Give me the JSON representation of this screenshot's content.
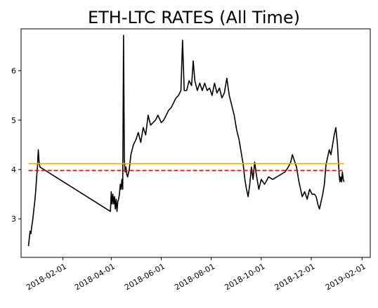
{
  "chart_data": {
    "type": "line",
    "title": "ETH-LTC RATES (All Time)",
    "xlabel": "",
    "ylabel": "",
    "x_range": [
      "2017-12-12",
      "2019-02-11"
    ],
    "ylim": [
      2.22,
      6.85
    ],
    "x_ticks": [
      "2018-02-01",
      "2018-04-01",
      "2018-06-01",
      "2018-08-01",
      "2018-10-01",
      "2018-12-01",
      "2019-02-01"
    ],
    "y_ticks": [
      3,
      4,
      5,
      6
    ],
    "grid": false,
    "legend": "none",
    "series": [
      {
        "color": "#000000",
        "style": "solid",
        "points": [
          [
            "2017-12-21",
            2.45
          ],
          [
            "2017-12-22",
            2.6
          ],
          [
            "2017-12-23",
            2.75
          ],
          [
            "2017-12-24",
            2.7
          ],
          [
            "2017-12-25",
            2.85
          ],
          [
            "2017-12-26",
            2.95
          ],
          [
            "2017-12-27",
            3.1
          ],
          [
            "2017-12-28",
            3.25
          ],
          [
            "2017-12-29",
            3.4
          ],
          [
            "2017-12-30",
            3.6
          ],
          [
            "2017-12-31",
            3.85
          ],
          [
            "2018-01-01",
            4.05
          ],
          [
            "2018-01-02",
            4.4
          ],
          [
            "2018-01-03",
            4.15
          ],
          [
            "2018-01-04",
            4.05
          ],
          [
            "2018-03-31",
            3.15
          ],
          [
            "2018-04-01",
            3.55
          ],
          [
            "2018-04-02",
            3.3
          ],
          [
            "2018-04-03",
            3.5
          ],
          [
            "2018-04-04",
            3.3
          ],
          [
            "2018-04-05",
            3.45
          ],
          [
            "2018-04-06",
            3.2
          ],
          [
            "2018-04-07",
            3.4
          ],
          [
            "2018-04-08",
            3.15
          ],
          [
            "2018-04-09",
            3.35
          ],
          [
            "2018-04-10",
            3.4
          ],
          [
            "2018-04-11",
            3.5
          ],
          [
            "2018-04-12",
            3.7
          ],
          [
            "2018-04-13",
            3.6
          ],
          [
            "2018-04-14",
            3.8
          ],
          [
            "2018-04-15",
            3.6
          ],
          [
            "2018-04-16",
            6.72
          ],
          [
            "2018-04-17",
            4.2
          ],
          [
            "2018-04-18",
            3.95
          ],
          [
            "2018-04-19",
            4.05
          ],
          [
            "2018-04-20",
            3.9
          ],
          [
            "2018-04-21",
            3.85
          ],
          [
            "2018-04-23",
            4.0
          ],
          [
            "2018-04-25",
            4.3
          ],
          [
            "2018-04-28",
            4.5
          ],
          [
            "2018-05-01",
            4.6
          ],
          [
            "2018-05-04",
            4.75
          ],
          [
            "2018-05-07",
            4.55
          ],
          [
            "2018-05-10",
            4.85
          ],
          [
            "2018-05-13",
            4.7
          ],
          [
            "2018-05-16",
            5.1
          ],
          [
            "2018-05-19",
            4.9
          ],
          [
            "2018-05-22",
            4.95
          ],
          [
            "2018-05-25",
            5.0
          ],
          [
            "2018-05-28",
            5.1
          ],
          [
            "2018-06-01",
            4.95
          ],
          [
            "2018-06-04",
            5.0
          ],
          [
            "2018-06-07",
            5.1
          ],
          [
            "2018-06-10",
            5.2
          ],
          [
            "2018-06-13",
            5.25
          ],
          [
            "2018-06-16",
            5.35
          ],
          [
            "2018-06-19",
            5.45
          ],
          [
            "2018-06-22",
            5.5
          ],
          [
            "2018-06-25",
            5.6
          ],
          [
            "2018-06-27",
            6.62
          ],
          [
            "2018-06-29",
            5.6
          ],
          [
            "2018-07-02",
            5.6
          ],
          [
            "2018-07-05",
            5.8
          ],
          [
            "2018-07-08",
            5.7
          ],
          [
            "2018-07-10",
            6.2
          ],
          [
            "2018-07-12",
            5.8
          ],
          [
            "2018-07-15",
            5.6
          ],
          [
            "2018-07-18",
            5.75
          ],
          [
            "2018-07-21",
            5.6
          ],
          [
            "2018-07-24",
            5.75
          ],
          [
            "2018-07-27",
            5.6
          ],
          [
            "2018-07-30",
            5.65
          ],
          [
            "2018-08-02",
            5.5
          ],
          [
            "2018-08-05",
            5.75
          ],
          [
            "2018-08-08",
            5.55
          ],
          [
            "2018-08-11",
            5.65
          ],
          [
            "2018-08-14",
            5.45
          ],
          [
            "2018-08-17",
            5.55
          ],
          [
            "2018-08-20",
            5.85
          ],
          [
            "2018-08-23",
            5.5
          ],
          [
            "2018-08-26",
            5.3
          ],
          [
            "2018-08-29",
            5.1
          ],
          [
            "2018-09-01",
            4.8
          ],
          [
            "2018-09-04",
            4.6
          ],
          [
            "2018-09-07",
            4.3
          ],
          [
            "2018-09-09",
            4.1
          ],
          [
            "2018-09-11",
            3.8
          ],
          [
            "2018-09-13",
            3.6
          ],
          [
            "2018-09-15",
            3.45
          ],
          [
            "2018-09-17",
            3.7
          ],
          [
            "2018-09-19",
            4.05
          ],
          [
            "2018-09-21",
            3.8
          ],
          [
            "2018-09-23",
            4.15
          ],
          [
            "2018-09-25",
            3.9
          ],
          [
            "2018-09-28",
            3.6
          ],
          [
            "2018-10-01",
            3.8
          ],
          [
            "2018-10-05",
            3.7
          ],
          [
            "2018-10-10",
            3.85
          ],
          [
            "2018-10-15",
            3.8
          ],
          [
            "2018-10-20",
            3.85
          ],
          [
            "2018-10-25",
            3.9
          ],
          [
            "2018-10-30",
            3.95
          ],
          [
            "2018-11-03",
            4.05
          ],
          [
            "2018-11-06",
            4.15
          ],
          [
            "2018-11-08",
            4.3
          ],
          [
            "2018-11-10",
            4.2
          ],
          [
            "2018-11-13",
            4.05
          ],
          [
            "2018-11-16",
            3.75
          ],
          [
            "2018-11-18",
            3.6
          ],
          [
            "2018-11-20",
            3.45
          ],
          [
            "2018-11-23",
            3.55
          ],
          [
            "2018-11-26",
            3.4
          ],
          [
            "2018-11-29",
            3.6
          ],
          [
            "2018-12-02",
            3.5
          ],
          [
            "2018-12-05",
            3.5
          ],
          [
            "2018-12-07",
            3.45
          ],
          [
            "2018-12-09",
            3.3
          ],
          [
            "2018-12-11",
            3.2
          ],
          [
            "2018-12-13",
            3.35
          ],
          [
            "2018-12-15",
            3.5
          ],
          [
            "2018-12-17",
            3.7
          ],
          [
            "2018-12-19",
            4.1
          ],
          [
            "2018-12-21",
            4.25
          ],
          [
            "2018-12-23",
            4.4
          ],
          [
            "2018-12-25",
            4.3
          ],
          [
            "2018-12-27",
            4.5
          ],
          [
            "2018-12-29",
            4.7
          ],
          [
            "2018-12-31",
            4.85
          ],
          [
            "2019-01-02",
            4.5
          ],
          [
            "2019-01-03",
            4.2
          ],
          [
            "2019-01-04",
            3.9
          ],
          [
            "2019-01-05",
            3.75
          ],
          [
            "2019-01-06",
            3.85
          ],
          [
            "2019-01-07",
            3.75
          ],
          [
            "2019-01-08",
            3.95
          ],
          [
            "2019-01-09",
            3.8
          ],
          [
            "2019-01-10",
            3.75
          ]
        ]
      },
      {
        "color": "#ffa500",
        "style": "solid",
        "points": [
          [
            "2017-12-21",
            4.12
          ],
          [
            "2019-01-10",
            4.12
          ]
        ]
      },
      {
        "color": "#ff0000",
        "style": "dashed",
        "points": [
          [
            "2017-12-21",
            3.98
          ],
          [
            "2019-01-10",
            3.98
          ]
        ]
      }
    ]
  }
}
